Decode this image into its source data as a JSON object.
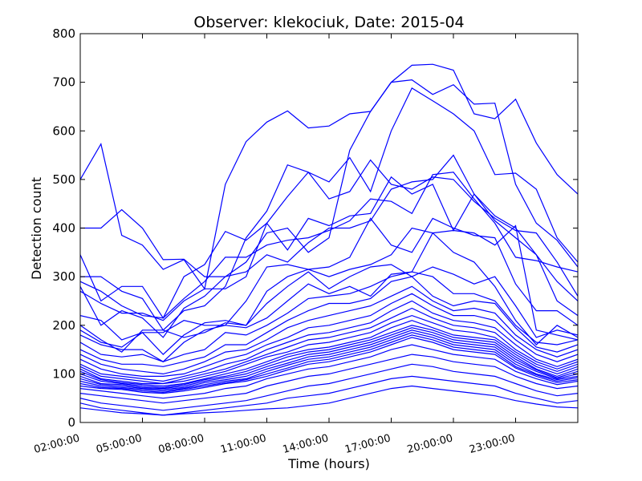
{
  "chart_data": {
    "type": "line",
    "title": "Observer: klekociuk, Date: 2015-04",
    "xlabel": "Time (hours)",
    "ylabel": "Detection count",
    "ylim": [
      0,
      800
    ],
    "xlim": [
      2,
      26
    ],
    "grid": false,
    "legend": "none",
    "line_color": "#0000ff",
    "x_ticks": [
      {
        "value": 2,
        "label": "02:00:00"
      },
      {
        "value": 5,
        "label": "05:00:00"
      },
      {
        "value": 8,
        "label": "08:00:00"
      },
      {
        "value": 11,
        "label": "11:00:00"
      },
      {
        "value": 14,
        "label": "14:00:00"
      },
      {
        "value": 17,
        "label": "17:00:00"
      },
      {
        "value": 20,
        "label": "20:00:00"
      },
      {
        "value": 23,
        "label": "23:00:00"
      }
    ],
    "y_ticks": [
      0,
      100,
      200,
      300,
      400,
      500,
      600,
      700,
      800
    ],
    "x": [
      2,
      3,
      4,
      5,
      6,
      7,
      8,
      9,
      10,
      11,
      12,
      13,
      14,
      15,
      16,
      17,
      18,
      19,
      20,
      21,
      22,
      23,
      24,
      25,
      26
    ],
    "series": [
      {
        "values": [
          500,
          573,
          385,
          365,
          315,
          335,
          275,
          490,
          578,
          618,
          641,
          606,
          610,
          635,
          640,
          700,
          705,
          675,
          695,
          655,
          657,
          490,
          410,
          375,
          320
        ]
      },
      {
        "values": [
          400,
          400,
          438,
          400,
          335,
          336,
          300,
          300,
          330,
          390,
          400,
          350,
          380,
          560,
          640,
          700,
          735,
          737,
          725,
          635,
          625,
          665,
          575,
          510,
          470
        ]
      },
      {
        "values": [
          345,
          250,
          280,
          280,
          215,
          300,
          325,
          393,
          375,
          410,
          465,
          515,
          495,
          545,
          475,
          600,
          688,
          662,
          635,
          600,
          510,
          513,
          480,
          380,
          330
        ]
      },
      {
        "values": [
          300,
          300,
          270,
          255,
          190,
          230,
          240,
          280,
          380,
          435,
          530,
          515,
          460,
          475,
          540,
          490,
          480,
          505,
          500,
          455,
          420,
          395,
          390,
          330,
          260
        ]
      },
      {
        "values": [
          290,
          270,
          240,
          220,
          215,
          255,
          290,
          340,
          340,
          365,
          375,
          380,
          395,
          415,
          460,
          455,
          430,
          510,
          515,
          460,
          410,
          340,
          333,
          320,
          310
        ]
      },
      {
        "values": [
          280,
          200,
          230,
          215,
          175,
          235,
          260,
          300,
          310,
          345,
          330,
          370,
          400,
          400,
          415,
          480,
          495,
          500,
          550,
          470,
          415,
          380,
          345,
          290,
          250
        ]
      },
      {
        "values": [
          270,
          245,
          225,
          225,
          210,
          250,
          275,
          275,
          300,
          410,
          355,
          420,
          405,
          425,
          430,
          505,
          470,
          490,
          395,
          470,
          425,
          400,
          345,
          250,
          220
        ]
      },
      {
        "values": [
          220,
          210,
          170,
          185,
          185,
          210,
          200,
          200,
          250,
          320,
          325,
          315,
          320,
          340,
          420,
          365,
          350,
          420,
          400,
          385,
          380,
          285,
          230,
          230,
          200
        ]
      },
      {
        "values": [
          200,
          170,
          145,
          190,
          190,
          175,
          185,
          205,
          200,
          270,
          300,
          315,
          300,
          315,
          325,
          345,
          400,
          390,
          395,
          390,
          365,
          405,
          190,
          180,
          170
        ]
      },
      {
        "values": [
          190,
          165,
          155,
          185,
          140,
          180,
          205,
          210,
          200,
          245,
          280,
          310,
          275,
          300,
          320,
          325,
          300,
          320,
          305,
          285,
          300,
          240,
          175,
          190,
          180
        ]
      },
      {
        "values": [
          180,
          160,
          150,
          150,
          125,
          165,
          190,
          200,
          195,
          215,
          250,
          285,
          265,
          280,
          260,
          305,
          310,
          390,
          350,
          330,
          280,
          210,
          160,
          200,
          175
        ]
      },
      {
        "values": [
          165,
          140,
          135,
          140,
          125,
          140,
          150,
          185,
          180,
          200,
          225,
          255,
          260,
          265,
          280,
          300,
          310,
          300,
          265,
          265,
          250,
          200,
          165,
          160,
          170
        ]
      },
      {
        "values": [
          150,
          130,
          120,
          120,
          115,
          125,
          135,
          160,
          160,
          185,
          210,
          230,
          245,
          245,
          255,
          290,
          300,
          260,
          240,
          250,
          245,
          195,
          155,
          145,
          160
        ]
      },
      {
        "values": [
          140,
          120,
          110,
          105,
          100,
          110,
          125,
          145,
          150,
          170,
          195,
          210,
          220,
          230,
          240,
          260,
          280,
          250,
          230,
          235,
          225,
          180,
          150,
          135,
          150
        ]
      },
      {
        "values": [
          130,
          110,
          100,
          95,
          95,
          100,
          115,
          130,
          140,
          160,
          175,
          195,
          200,
          210,
          220,
          245,
          265,
          240,
          220,
          220,
          210,
          170,
          140,
          125,
          140
        ]
      },
      {
        "values": [
          120,
          100,
          95,
          90,
          85,
          95,
          105,
          120,
          130,
          150,
          165,
          180,
          185,
          195,
          205,
          230,
          250,
          225,
          210,
          205,
          195,
          160,
          130,
          115,
          130
        ]
      },
      {
        "values": [
          115,
          95,
          90,
          85,
          80,
          90,
          100,
          110,
          125,
          140,
          155,
          170,
          175,
          185,
          195,
          215,
          235,
          215,
          200,
          195,
          185,
          150,
          125,
          110,
          125
        ]
      },
      {
        "values": [
          110,
          90,
          85,
          80,
          80,
          85,
          95,
          105,
          120,
          135,
          145,
          160,
          165,
          175,
          185,
          205,
          220,
          205,
          190,
          185,
          175,
          145,
          120,
          105,
          120
        ]
      },
      {
        "values": [
          105,
          88,
          82,
          78,
          75,
          80,
          90,
          100,
          110,
          125,
          140,
          150,
          155,
          165,
          175,
          195,
          210,
          195,
          180,
          175,
          170,
          140,
          115,
          100,
          115
        ]
      },
      {
        "values": [
          100,
          85,
          80,
          75,
          72,
          78,
          88,
          95,
          105,
          120,
          135,
          145,
          150,
          160,
          170,
          185,
          200,
          190,
          175,
          170,
          165,
          135,
          110,
          95,
          110
        ]
      },
      {
        "values": [
          95,
          80,
          78,
          72,
          70,
          75,
          85,
          92,
          100,
          115,
          128,
          140,
          145,
          155,
          165,
          180,
          195,
          185,
          170,
          165,
          160,
          130,
          108,
          92,
          105
        ]
      },
      {
        "values": [
          90,
          78,
          75,
          70,
          68,
          72,
          82,
          88,
          95,
          110,
          122,
          135,
          140,
          150,
          160,
          175,
          190,
          180,
          165,
          160,
          155,
          125,
          105,
          90,
          100
        ]
      },
      {
        "values": [
          85,
          75,
          72,
          68,
          65,
          70,
          78,
          85,
          90,
          105,
          118,
          130,
          135,
          145,
          155,
          170,
          185,
          175,
          160,
          155,
          150,
          120,
          100,
          88,
          95
        ]
      },
      {
        "values": [
          80,
          72,
          70,
          65,
          62,
          68,
          75,
          82,
          88,
          100,
          112,
          125,
          130,
          140,
          150,
          165,
          180,
          170,
          155,
          150,
          145,
          115,
          98,
          85,
          92
        ]
      },
      {
        "values": [
          75,
          70,
          68,
          62,
          60,
          65,
          72,
          80,
          85,
          95,
          108,
          120,
          125,
          135,
          145,
          160,
          175,
          165,
          150,
          145,
          140,
          112,
          95,
          82,
          88
        ]
      },
      {
        "values": [
          70,
          65,
          60,
          55,
          50,
          55,
          60,
          70,
          75,
          90,
          100,
          110,
          115,
          125,
          135,
          150,
          160,
          150,
          140,
          135,
          130,
          105,
          90,
          78,
          85
        ]
      },
      {
        "values": [
          60,
          55,
          50,
          45,
          40,
          45,
          50,
          55,
          60,
          75,
          85,
          95,
          100,
          110,
          120,
          130,
          140,
          135,
          125,
          120,
          115,
          95,
          80,
          70,
          75
        ]
      },
      {
        "values": [
          50,
          40,
          35,
          30,
          25,
          30,
          35,
          40,
          45,
          55,
          65,
          75,
          80,
          90,
          100,
          110,
          120,
          115,
          105,
          100,
          95,
          80,
          65,
          55,
          60
        ]
      },
      {
        "values": [
          40,
          30,
          25,
          20,
          15,
          20,
          25,
          30,
          35,
          40,
          50,
          55,
          60,
          70,
          80,
          90,
          95,
          90,
          85,
          80,
          75,
          60,
          50,
          40,
          45
        ]
      },
      {
        "values": [
          30,
          25,
          20,
          18,
          15,
          18,
          20,
          22,
          25,
          28,
          30,
          35,
          40,
          50,
          60,
          70,
          75,
          70,
          65,
          60,
          55,
          45,
          38,
          32,
          30
        ]
      }
    ]
  }
}
